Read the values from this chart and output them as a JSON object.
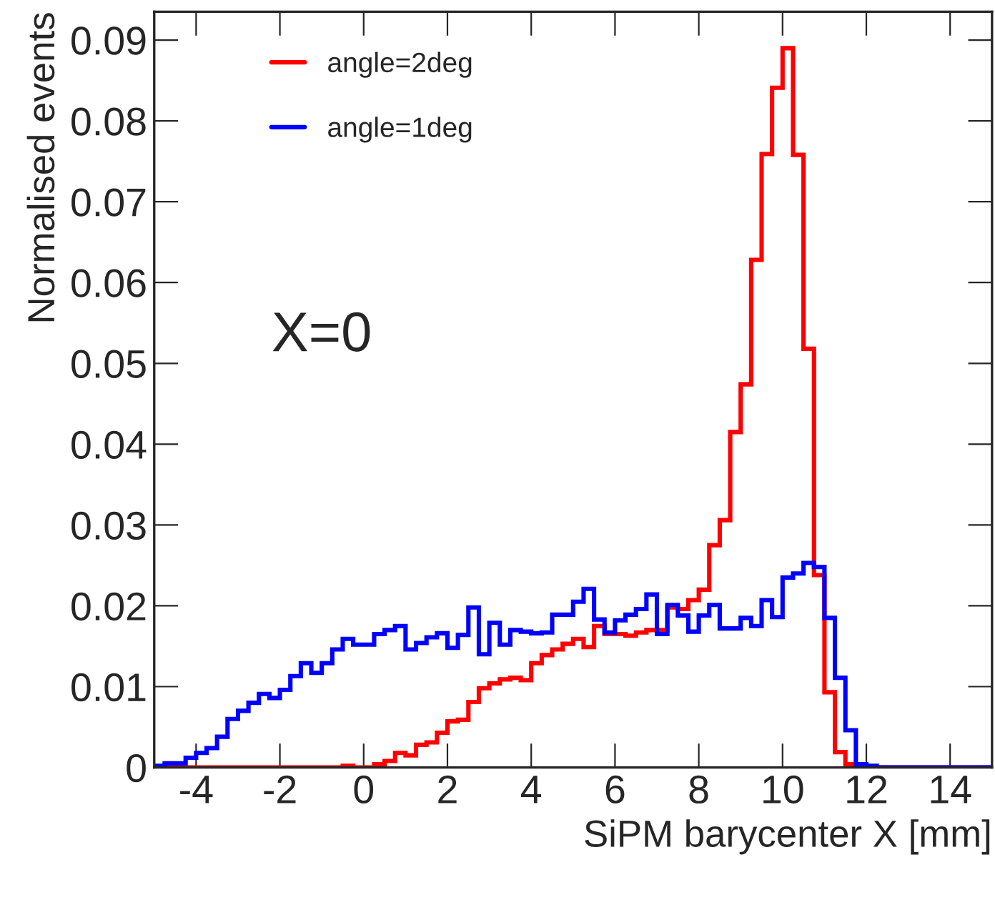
{
  "chart_data": {
    "type": "histogram",
    "xlabel": "SiPM barycenter X [mm]",
    "ylabel": "Normalised events",
    "annotations": [
      "X=0"
    ],
    "bins": [
      -5,
      -4.75,
      -4.5,
      -4.25,
      -4,
      -3.75,
      -3.5,
      -3.25,
      -3,
      -2.75,
      -2.5,
      -2.25,
      -2,
      -1.75,
      -1.5,
      -1.25,
      -1,
      -0.75,
      -0.5,
      -0.25,
      0,
      0.25,
      0.5,
      0.75,
      1,
      1.25,
      1.5,
      1.75,
      2,
      2.25,
      2.5,
      2.75,
      3,
      3.25,
      3.5,
      3.75,
      4,
      4.25,
      4.5,
      4.75,
      5,
      5.25,
      5.5,
      5.75,
      6,
      6.25,
      6.5,
      6.75,
      7,
      7.25,
      7.5,
      7.75,
      8,
      8.25,
      8.5,
      8.75,
      9,
      9.25,
      9.5,
      9.75,
      10,
      10.25,
      10.5,
      10.75,
      11,
      11.25,
      11.5,
      11.75,
      12,
      12.25,
      12.5,
      12.75,
      13,
      13.25,
      13.5,
      13.75,
      14,
      14.25,
      14.5,
      14.75,
      15
    ],
    "series": [
      {
        "name": "angle=2deg",
        "color": "#ff0000",
        "values": [
          0,
          0,
          0,
          0,
          0,
          0,
          0,
          0,
          0,
          0,
          0,
          0,
          0,
          0,
          0,
          0,
          0,
          0,
          0.0002,
          0,
          0,
          0.0004,
          0.0008,
          0.0018,
          0.0015,
          0.0028,
          0.0031,
          0.0043,
          0.0057,
          0.0059,
          0.0081,
          0.0098,
          0.0104,
          0.0109,
          0.0111,
          0.0108,
          0.0129,
          0.0139,
          0.0146,
          0.0153,
          0.0159,
          0.0149,
          0.0175,
          0.0165,
          0.0165,
          0.0163,
          0.0167,
          0.017,
          0.017,
          0.0198,
          0.0196,
          0.0207,
          0.022,
          0.0275,
          0.0306,
          0.0415,
          0.0474,
          0.0628,
          0.0759,
          0.0841,
          0.089,
          0.0758,
          0.0518,
          0.0238,
          0.0093,
          0.0019,
          0.0004,
          0.0002,
          0,
          0,
          0,
          0,
          0,
          0,
          0,
          0,
          0,
          0,
          0,
          0
        ]
      },
      {
        "name": "angle=1deg",
        "color": "#0000ff",
        "values": [
          0.0002,
          0.0005,
          0.0005,
          0.0012,
          0.0018,
          0.0024,
          0.0038,
          0.006,
          0.007,
          0.008,
          0.0091,
          0.0086,
          0.0096,
          0.0113,
          0.0129,
          0.0117,
          0.0129,
          0.0146,
          0.0159,
          0.0152,
          0.0152,
          0.0165,
          0.017,
          0.0175,
          0.0146,
          0.0154,
          0.0161,
          0.0166,
          0.0148,
          0.0164,
          0.0198,
          0.014,
          0.0179,
          0.0152,
          0.017,
          0.0168,
          0.0166,
          0.0167,
          0.0189,
          0.0189,
          0.0205,
          0.0221,
          0.0183,
          0.0167,
          0.0182,
          0.0189,
          0.0196,
          0.0214,
          0.0165,
          0.0201,
          0.0188,
          0.0168,
          0.0188,
          0.0201,
          0.0172,
          0.0172,
          0.0185,
          0.0175,
          0.0207,
          0.0186,
          0.0235,
          0.024,
          0.0253,
          0.0248,
          0.0185,
          0.0111,
          0.0046,
          0.0004,
          0.0002,
          0,
          0,
          0,
          0,
          0,
          0,
          0,
          0,
          0,
          0,
          0
        ]
      }
    ],
    "xlim": [
      -5,
      15
    ],
    "xticks": [
      -4,
      -2,
      0,
      2,
      4,
      6,
      8,
      10,
      12,
      14
    ],
    "ylim": [
      0,
      0.0935
    ],
    "yticks": [
      0,
      0.01,
      0.02,
      0.03,
      0.04,
      0.05,
      0.06,
      0.07,
      0.08,
      0.09
    ],
    "grid": false,
    "legend": "top left"
  }
}
